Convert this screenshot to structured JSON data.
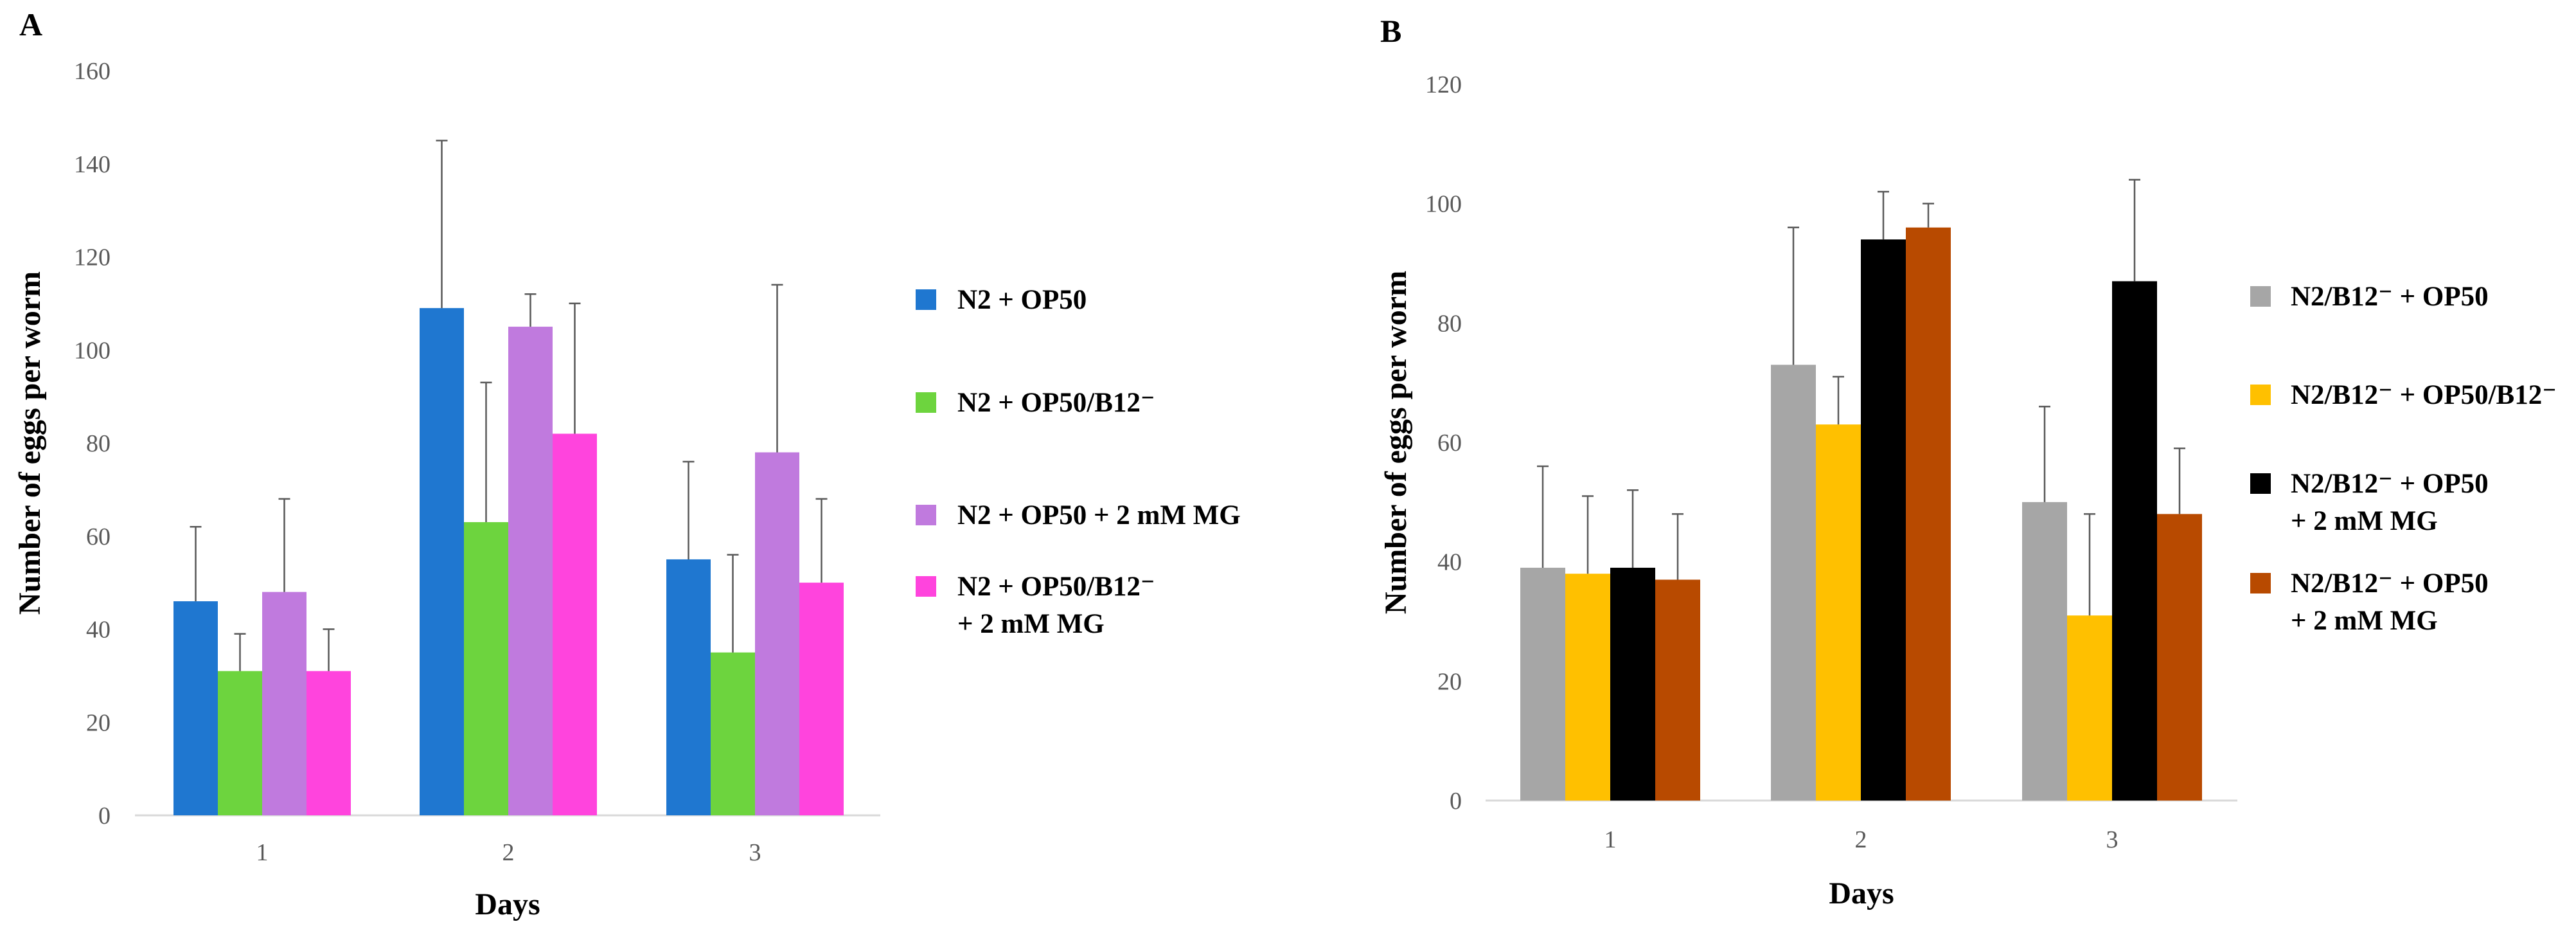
{
  "chart_data": [
    {
      "type": "bar",
      "panel": "A",
      "categories": [
        "1",
        "2",
        "3"
      ],
      "xlabel": "Days",
      "ylabel": "Number of eggs per worm",
      "ylim": [
        0,
        160
      ],
      "yticks": [
        0,
        20,
        40,
        60,
        80,
        100,
        120,
        140,
        160
      ],
      "legend_position": "right",
      "series": [
        {
          "name": "N2 + OP50",
          "legend_lines": [
            "N2 + OP50"
          ],
          "color": "#1F77D0",
          "values": [
            46,
            109,
            55
          ],
          "errors": [
            16,
            36,
            21
          ]
        },
        {
          "name": "N2 + OP50/B12⁻",
          "legend_lines": [
            "N2 + OP50/B12⁻"
          ],
          "color": "#6DD43E",
          "values": [
            31,
            63,
            35
          ],
          "errors": [
            8,
            30,
            21
          ]
        },
        {
          "name": "N2 + OP50 + 2 mM MG",
          "legend_lines": [
            "N2 + OP50 + 2 mM MG"
          ],
          "color": "#C07ADE",
          "values": [
            48,
            105,
            78
          ],
          "errors": [
            20,
            7,
            36
          ]
        },
        {
          "name": "N2 + OP50/B12⁻ + 2 mM MG",
          "legend_lines": [
            "N2 + OP50/B12⁻",
            "+ 2 mM MG"
          ],
          "color": "#FF44DD",
          "values": [
            31,
            82,
            50
          ],
          "errors": [
            9,
            28,
            18
          ]
        }
      ]
    },
    {
      "type": "bar",
      "panel": "B",
      "categories": [
        "1",
        "2",
        "3"
      ],
      "xlabel": "Days",
      "ylabel": "Number of eggs per worm",
      "ylim": [
        0,
        120
      ],
      "yticks": [
        0,
        20,
        40,
        60,
        80,
        100,
        120
      ],
      "legend_position": "right",
      "series": [
        {
          "name": "N2/B12⁻ + OP50",
          "legend_lines": [
            "N2/B12⁻ + OP50"
          ],
          "color": "#A6A6A6",
          "values": [
            39,
            73,
            50
          ],
          "errors": [
            17,
            23,
            16
          ]
        },
        {
          "name": "N2/B12⁻ + OP50/B12⁻",
          "legend_lines": [
            "N2/B12⁻ + OP50/B12⁻"
          ],
          "color": "#FFC000",
          "values": [
            38,
            63,
            31
          ],
          "errors": [
            13,
            8,
            17
          ]
        },
        {
          "name": "N2/B12⁻ + OP50 + 2 mM MG",
          "legend_lines": [
            "N2/B12⁻ + OP50",
            "+ 2 mM MG"
          ],
          "color": "#000000",
          "values": [
            39,
            94,
            87
          ],
          "errors": [
            13,
            8,
            17
          ]
        },
        {
          "name": "N2/B12⁻ + OP50 + 2 mM MG",
          "legend_lines": [
            "N2/B12⁻ + OP50",
            "+ 2 mM MG"
          ],
          "color": "#B84A00",
          "values": [
            37,
            96,
            48
          ],
          "errors": [
            11,
            4,
            11
          ]
        }
      ]
    }
  ]
}
